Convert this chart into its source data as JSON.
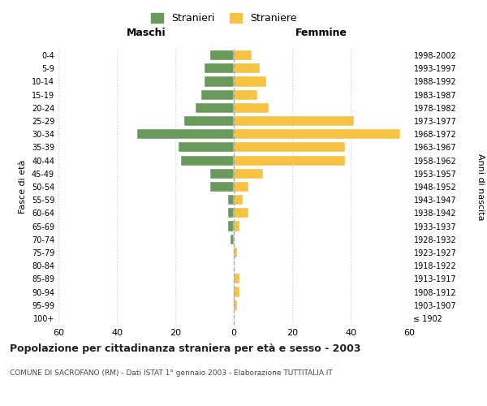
{
  "age_groups": [
    "100+",
    "95-99",
    "90-94",
    "85-89",
    "80-84",
    "75-79",
    "70-74",
    "65-69",
    "60-64",
    "55-59",
    "50-54",
    "45-49",
    "40-44",
    "35-39",
    "30-34",
    "25-29",
    "20-24",
    "15-19",
    "10-14",
    "5-9",
    "0-4"
  ],
  "birth_years": [
    "≤ 1902",
    "1903-1907",
    "1908-1912",
    "1913-1917",
    "1918-1922",
    "1923-1927",
    "1928-1932",
    "1933-1937",
    "1938-1942",
    "1943-1947",
    "1948-1952",
    "1953-1957",
    "1958-1962",
    "1963-1967",
    "1968-1972",
    "1973-1977",
    "1978-1982",
    "1983-1987",
    "1988-1992",
    "1993-1997",
    "1998-2002"
  ],
  "maschi": [
    0,
    0,
    0,
    0,
    0,
    0,
    1,
    2,
    2,
    2,
    8,
    8,
    18,
    19,
    33,
    17,
    13,
    11,
    10,
    10,
    8
  ],
  "femmine": [
    0,
    1,
    2,
    2,
    0,
    1,
    0,
    2,
    5,
    3,
    5,
    10,
    38,
    38,
    57,
    41,
    12,
    8,
    11,
    9,
    6
  ],
  "color_maschi": "#6a9a5b",
  "color_femmine": "#f5c242",
  "title": "Popolazione per cittadinanza straniera per età e sesso - 2003",
  "subtitle": "COMUNE DI SACROFANO (RM) - Dati ISTAT 1° gennaio 2003 - Elaborazione TUTTITALIA.IT",
  "ylabel_left": "Fasce di età",
  "ylabel_right": "Anni di nascita",
  "xlabel_left": "Maschi",
  "xlabel_right": "Femmine",
  "legend_stranieri": "Stranieri",
  "legend_straniere": "Straniere",
  "xlim": 60,
  "bg_color": "#ffffff",
  "grid_color": "#cccccc",
  "dashed_line_color": "#aaaaaa"
}
